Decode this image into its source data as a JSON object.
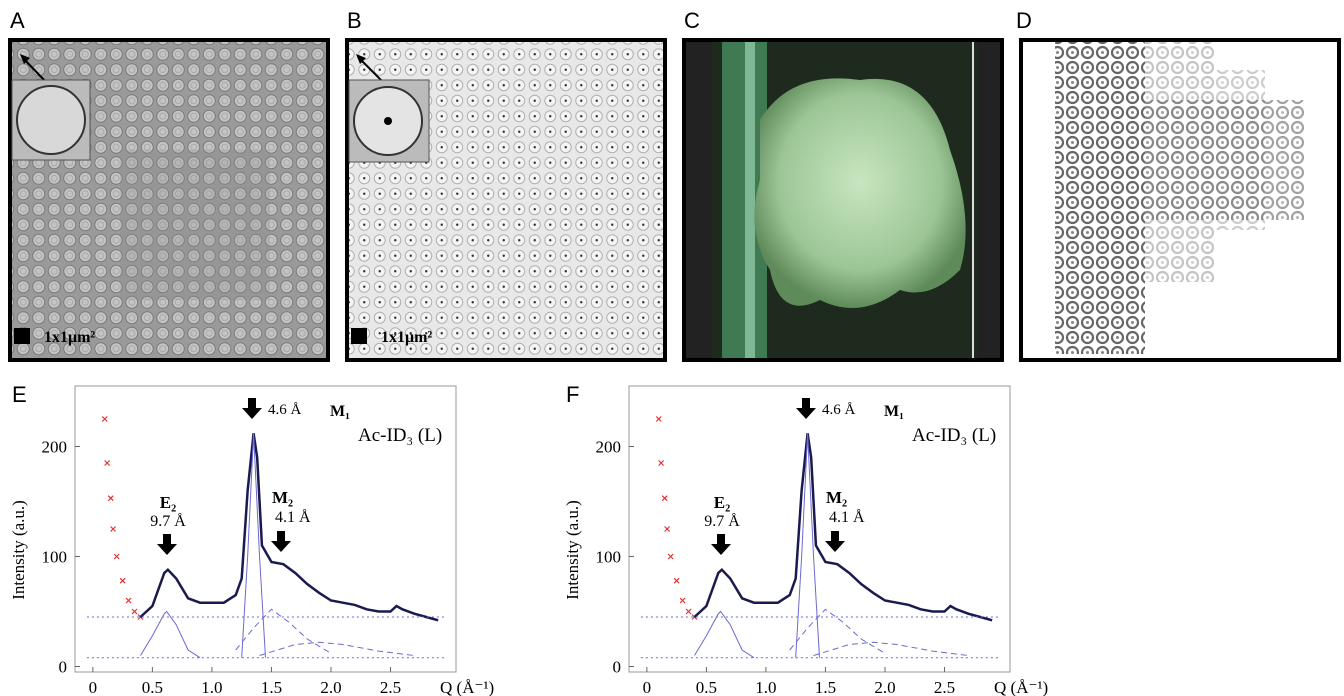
{
  "panels": {
    "labels": [
      "A",
      "B",
      "C",
      "D"
    ],
    "scale_bar": "1x1μm²"
  },
  "chart_data": [
    {
      "type": "line",
      "panel": "E",
      "ylabel": "Intensity (a.u.)",
      "xlabel": "Q (Å⁻¹)",
      "xlim": [
        -0.15,
        3.05
      ],
      "ylim": [
        -5,
        255
      ],
      "xticks": [
        0,
        0.5,
        {
          "value": 1,
          "label": "1.0"
        },
        1.5,
        {
          "value": 2,
          "label": "2.0"
        },
        2.5
      ],
      "yticks": [
        0,
        100,
        200
      ],
      "annotations": [
        "4.6 Å",
        "M₁",
        "Ac-ID₃ (L)",
        "E₂",
        "9.7 Å",
        "M₂",
        "4.1 Å"
      ],
      "series": [
        {
          "style": "cross",
          "color": "#e03030",
          "x": [
            0.1,
            0.12,
            0.15,
            0.17,
            0.2,
            0.25,
            0.3,
            0.35,
            0.4
          ],
          "values": [
            225,
            185,
            153,
            125,
            100,
            78,
            60,
            50,
            45
          ]
        },
        {
          "style": "line",
          "color": "#1a1a50",
          "x": [
            0.4,
            0.5,
            0.6,
            0.63,
            0.7,
            0.8,
            0.9,
            1.0,
            1.1,
            1.2,
            1.25,
            1.3,
            1.35,
            1.38,
            1.42,
            1.5,
            1.6,
            1.7,
            1.8,
            1.9,
            2.0,
            2.1,
            2.2,
            2.3,
            2.4,
            2.5,
            2.55,
            2.6,
            2.7,
            2.8,
            2.9
          ],
          "values": [
            45,
            55,
            85,
            88,
            80,
            62,
            58,
            58,
            58,
            65,
            80,
            160,
            212,
            190,
            110,
            95,
            93,
            85,
            75,
            67,
            60,
            58,
            56,
            52,
            50,
            50,
            55,
            52,
            48,
            45,
            42
          ]
        },
        {
          "style": "dotted",
          "color": "#6a6ad0",
          "x": [
            -0.05,
            2.95
          ],
          "values": [
            45,
            45
          ]
        },
        {
          "style": "dotted",
          "color": "#6a6ad0",
          "x": [
            -0.05,
            2.95
          ],
          "values": [
            8,
            8
          ]
        },
        {
          "style": "thin",
          "color": "#6a6ad0",
          "x": [
            0.4,
            0.5,
            0.6,
            0.62,
            0.7,
            0.8,
            0.9
          ],
          "values": [
            10,
            28,
            48,
            50,
            38,
            15,
            8
          ]
        },
        {
          "style": "thin",
          "color": "#6a6ad0",
          "x": [
            1.25,
            1.3,
            1.35,
            1.4,
            1.45
          ],
          "values": [
            8,
            100,
            212,
            100,
            8
          ]
        },
        {
          "style": "dashed",
          "color": "#6a6ad0",
          "x": [
            1.2,
            1.35,
            1.5,
            1.65,
            1.8,
            2.0
          ],
          "values": [
            15,
            35,
            52,
            40,
            25,
            12
          ]
        },
        {
          "style": "dashed",
          "color": "#6a6ad0",
          "x": [
            1.4,
            1.7,
            1.9,
            2.1,
            2.4,
            2.7
          ],
          "values": [
            10,
            20,
            22,
            20,
            14,
            10
          ]
        }
      ]
    },
    {
      "type": "line",
      "panel": "F",
      "ylabel": "Intensity (a.u.)",
      "xlabel": "Q (Å⁻¹)",
      "xlim": [
        -0.15,
        3.05
      ],
      "ylim": [
        -5,
        255
      ],
      "xticks": [
        0,
        0.5,
        {
          "value": 1,
          "label": "1.0"
        },
        1.5,
        {
          "value": 2,
          "label": "2.0"
        },
        2.5
      ],
      "yticks": [
        0,
        100,
        200
      ],
      "annotations": [
        "4.6 Å",
        "M₁",
        "Ac-ID₃ (L)",
        "E₂",
        "9.7 Å",
        "M₂",
        "4.1 Å"
      ],
      "series": [
        {
          "style": "cross",
          "color": "#e03030",
          "x": [
            0.1,
            0.12,
            0.15,
            0.17,
            0.2,
            0.25,
            0.3,
            0.35,
            0.4
          ],
          "values": [
            225,
            185,
            153,
            125,
            100,
            78,
            60,
            50,
            45
          ]
        },
        {
          "style": "line",
          "color": "#1a1a50",
          "x": [
            0.4,
            0.5,
            0.6,
            0.63,
            0.7,
            0.8,
            0.9,
            1.0,
            1.1,
            1.2,
            1.25,
            1.3,
            1.35,
            1.38,
            1.42,
            1.5,
            1.6,
            1.7,
            1.8,
            1.9,
            2.0,
            2.1,
            2.2,
            2.3,
            2.4,
            2.5,
            2.55,
            2.6,
            2.7,
            2.8,
            2.9
          ],
          "values": [
            45,
            55,
            85,
            88,
            80,
            62,
            58,
            58,
            58,
            65,
            80,
            160,
            212,
            190,
            110,
            95,
            93,
            85,
            75,
            67,
            60,
            58,
            56,
            52,
            50,
            50,
            55,
            52,
            48,
            45,
            42
          ]
        },
        {
          "style": "dotted",
          "color": "#6a6ad0",
          "x": [
            -0.05,
            2.95
          ],
          "values": [
            45,
            45
          ]
        },
        {
          "style": "dotted",
          "color": "#6a6ad0",
          "x": [
            -0.05,
            2.95
          ],
          "values": [
            8,
            8
          ]
        },
        {
          "style": "thin",
          "color": "#6a6ad0",
          "x": [
            0.4,
            0.5,
            0.6,
            0.62,
            0.7,
            0.8,
            0.9
          ],
          "values": [
            10,
            28,
            48,
            50,
            38,
            15,
            8
          ]
        },
        {
          "style": "thin",
          "color": "#6a6ad0",
          "x": [
            1.25,
            1.3,
            1.35,
            1.4,
            1.45
          ],
          "values": [
            8,
            100,
            212,
            100,
            8
          ]
        },
        {
          "style": "dashed",
          "color": "#6a6ad0",
          "x": [
            1.2,
            1.35,
            1.5,
            1.65,
            1.8,
            2.0
          ],
          "values": [
            15,
            35,
            52,
            40,
            25,
            12
          ]
        },
        {
          "style": "dashed",
          "color": "#6a6ad0",
          "x": [
            1.4,
            1.7,
            1.9,
            2.1,
            2.4,
            2.7
          ],
          "values": [
            10,
            20,
            22,
            20,
            14,
            10
          ]
        }
      ]
    }
  ]
}
